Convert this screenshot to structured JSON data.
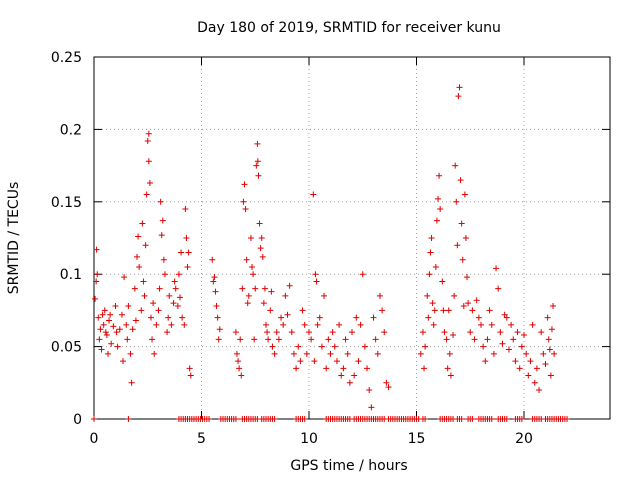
{
  "chart_data": {
    "type": "scatter",
    "title": "Day 180 of 2019, SRMTID for receiver kunu",
    "xlabel": "GPS time / hours",
    "ylabel": "SRMTID / TECUs",
    "xlim": [
      0,
      24
    ],
    "ylim": [
      0,
      0.25
    ],
    "x_ticks": [
      0,
      5,
      10,
      15,
      20
    ],
    "x_tick_labels": [
      "0",
      "5",
      "10",
      "15",
      "20"
    ],
    "y_ticks": [
      0,
      0.05,
      0.1,
      0.15,
      0.2,
      0.25
    ],
    "y_tick_labels": [
      "0",
      "0.05",
      "0.1",
      "0.15",
      "0.2",
      "0.25"
    ],
    "grid": true,
    "marker": "+",
    "series": [
      {
        "name": "SRMTID",
        "color": "#e00000",
        "points": [
          [
            0.05,
            0.083
          ],
          [
            0.1,
            0.095
          ],
          [
            0.12,
            0.117
          ],
          [
            0.15,
            0.1
          ],
          [
            0.2,
            0.07
          ],
          [
            0.25,
            0.055
          ],
          [
            0.3,
            0.062
          ],
          [
            0.35,
            0.048
          ],
          [
            0.4,
            0.072
          ],
          [
            0.45,
            0.065
          ],
          [
            0.5,
            0.075
          ],
          [
            0.55,
            0.06
          ],
          [
            0.6,
            0.058
          ],
          [
            0.65,
            0.045
          ],
          [
            0.7,
            0.068
          ],
          [
            0.75,
            0.072
          ],
          [
            0.8,
            0.052
          ],
          [
            0.9,
            0.064
          ],
          [
            1.0,
            0.078
          ],
          [
            1.05,
            0.06
          ],
          [
            1.1,
            0.05
          ],
          [
            1.2,
            0.062
          ],
          [
            1.3,
            0.072
          ],
          [
            1.35,
            0.04
          ],
          [
            1.4,
            0.098
          ],
          [
            1.5,
            0.065
          ],
          [
            1.55,
            0.055
          ],
          [
            1.6,
            0.078
          ],
          [
            1.7,
            0.045
          ],
          [
            1.75,
            0.025
          ],
          [
            1.8,
            0.062
          ],
          [
            1.9,
            0.09
          ],
          [
            1.95,
            0.068
          ],
          [
            2.0,
            0.112
          ],
          [
            2.05,
            0.126
          ],
          [
            2.1,
            0.105
          ],
          [
            2.2,
            0.075
          ],
          [
            2.25,
            0.135
          ],
          [
            2.3,
            0.095
          ],
          [
            2.35,
            0.085
          ],
          [
            2.4,
            0.12
          ],
          [
            2.45,
            0.155
          ],
          [
            2.5,
            0.192
          ],
          [
            2.55,
            0.197
          ],
          [
            2.55,
            0.178
          ],
          [
            2.6,
            0.163
          ],
          [
            2.65,
            0.07
          ],
          [
            2.7,
            0.055
          ],
          [
            2.75,
            0.08
          ],
          [
            2.8,
            0.045
          ],
          [
            2.9,
            0.065
          ],
          [
            3.0,
            0.075
          ],
          [
            3.05,
            0.09
          ],
          [
            3.1,
            0.15
          ],
          [
            3.15,
            0.127
          ],
          [
            3.2,
            0.137
          ],
          [
            3.25,
            0.11
          ],
          [
            3.3,
            0.1
          ],
          [
            3.4,
            0.06
          ],
          [
            3.45,
            0.07
          ],
          [
            3.5,
            0.085
          ],
          [
            3.6,
            0.065
          ],
          [
            3.7,
            0.08
          ],
          [
            3.75,
            0.095
          ],
          [
            3.8,
            0.09
          ],
          [
            3.9,
            0.078
          ],
          [
            3.95,
            0.1
          ],
          [
            4.0,
            0.084
          ],
          [
            4.05,
            0.115
          ],
          [
            4.1,
            0.07
          ],
          [
            4.2,
            0.065
          ],
          [
            4.25,
            0.145
          ],
          [
            4.3,
            0.125
          ],
          [
            4.35,
            0.105
          ],
          [
            4.4,
            0.115
          ],
          [
            4.45,
            0.035
          ],
          [
            4.5,
            0.03
          ],
          [
            5.5,
            0.11
          ],
          [
            5.55,
            0.095
          ],
          [
            5.6,
            0.098
          ],
          [
            5.65,
            0.088
          ],
          [
            5.7,
            0.078
          ],
          [
            5.75,
            0.07
          ],
          [
            5.8,
            0.055
          ],
          [
            5.85,
            0.062
          ],
          [
            6.6,
            0.06
          ],
          [
            6.65,
            0.045
          ],
          [
            6.7,
            0.04
          ],
          [
            6.75,
            0.035
          ],
          [
            6.8,
            0.055
          ],
          [
            6.85,
            0.03
          ],
          [
            6.9,
            0.09
          ],
          [
            6.95,
            0.15
          ],
          [
            7.0,
            0.162
          ],
          [
            7.05,
            0.145
          ],
          [
            7.1,
            0.11
          ],
          [
            7.15,
            0.08
          ],
          [
            7.2,
            0.085
          ],
          [
            7.3,
            0.125
          ],
          [
            7.35,
            0.105
          ],
          [
            7.4,
            0.1
          ],
          [
            7.45,
            0.055
          ],
          [
            7.5,
            0.09
          ],
          [
            7.55,
            0.175
          ],
          [
            7.6,
            0.19
          ],
          [
            7.62,
            0.178
          ],
          [
            7.65,
            0.168
          ],
          [
            7.7,
            0.135
          ],
          [
            7.75,
            0.118
          ],
          [
            7.8,
            0.125
          ],
          [
            7.85,
            0.112
          ],
          [
            7.9,
            0.08
          ],
          [
            7.95,
            0.09
          ],
          [
            8.0,
            0.065
          ],
          [
            8.05,
            0.06
          ],
          [
            8.1,
            0.055
          ],
          [
            8.2,
            0.075
          ],
          [
            8.25,
            0.088
          ],
          [
            8.3,
            0.05
          ],
          [
            8.4,
            0.045
          ],
          [
            8.5,
            0.06
          ],
          [
            8.6,
            0.055
          ],
          [
            8.7,
            0.07
          ],
          [
            8.8,
            0.065
          ],
          [
            8.9,
            0.085
          ],
          [
            9.0,
            0.072
          ],
          [
            9.1,
            0.092
          ],
          [
            9.2,
            0.06
          ],
          [
            9.3,
            0.045
          ],
          [
            9.4,
            0.035
          ],
          [
            9.5,
            0.05
          ],
          [
            9.6,
            0.04
          ],
          [
            9.7,
            0.075
          ],
          [
            9.8,
            0.065
          ],
          [
            9.9,
            0.045
          ],
          [
            10.0,
            0.06
          ],
          [
            10.1,
            0.055
          ],
          [
            10.2,
            0.155
          ],
          [
            10.25,
            0.04
          ],
          [
            10.3,
            0.1
          ],
          [
            10.35,
            0.095
          ],
          [
            10.4,
            0.065
          ],
          [
            10.5,
            0.07
          ],
          [
            10.6,
            0.05
          ],
          [
            10.7,
            0.085
          ],
          [
            10.8,
            0.035
          ],
          [
            10.9,
            0.055
          ],
          [
            11.0,
            0.045
          ],
          [
            11.1,
            0.06
          ],
          [
            11.2,
            0.05
          ],
          [
            11.3,
            0.04
          ],
          [
            11.4,
            0.065
          ],
          [
            11.5,
            0.03
          ],
          [
            11.6,
            0.035
          ],
          [
            11.7,
            0.055
          ],
          [
            11.8,
            0.045
          ],
          [
            11.9,
            0.025
          ],
          [
            12.0,
            0.06
          ],
          [
            12.1,
            0.03
          ],
          [
            12.2,
            0.07
          ],
          [
            12.3,
            0.04
          ],
          [
            12.4,
            0.065
          ],
          [
            12.5,
            0.1
          ],
          [
            12.6,
            0.05
          ],
          [
            12.7,
            0.035
          ],
          [
            12.8,
            0.02
          ],
          [
            12.9,
            0.008
          ],
          [
            13.0,
            0.07
          ],
          [
            13.1,
            0.055
          ],
          [
            13.2,
            0.045
          ],
          [
            13.3,
            0.085
          ],
          [
            13.4,
            0.075
          ],
          [
            13.5,
            0.06
          ],
          [
            13.6,
            0.025
          ],
          [
            13.7,
            0.022
          ],
          [
            15.2,
            0.045
          ],
          [
            15.3,
            0.06
          ],
          [
            15.35,
            0.035
          ],
          [
            15.4,
            0.05
          ],
          [
            15.5,
            0.085
          ],
          [
            15.55,
            0.07
          ],
          [
            15.6,
            0.1
          ],
          [
            15.65,
            0.115
          ],
          [
            15.7,
            0.125
          ],
          [
            15.75,
            0.08
          ],
          [
            15.8,
            0.065
          ],
          [
            15.85,
            0.075
          ],
          [
            15.9,
            0.105
          ],
          [
            15.95,
            0.137
          ],
          [
            16.0,
            0.152
          ],
          [
            16.05,
            0.168
          ],
          [
            16.1,
            0.145
          ],
          [
            16.2,
            0.095
          ],
          [
            16.25,
            0.075
          ],
          [
            16.3,
            0.06
          ],
          [
            16.4,
            0.055
          ],
          [
            16.45,
            0.035
          ],
          [
            16.5,
            0.075
          ],
          [
            16.55,
            0.045
          ],
          [
            16.6,
            0.03
          ],
          [
            16.7,
            0.058
          ],
          [
            16.75,
            0.085
          ],
          [
            16.8,
            0.175
          ],
          [
            16.85,
            0.15
          ],
          [
            16.9,
            0.12
          ],
          [
            16.95,
            0.223
          ],
          [
            17.0,
            0.229
          ],
          [
            17.05,
            0.165
          ],
          [
            17.1,
            0.135
          ],
          [
            17.15,
            0.11
          ],
          [
            17.2,
            0.078
          ],
          [
            17.25,
            0.155
          ],
          [
            17.3,
            0.125
          ],
          [
            17.35,
            0.098
          ],
          [
            17.4,
            0.08
          ],
          [
            17.5,
            0.06
          ],
          [
            17.6,
            0.075
          ],
          [
            17.7,
            0.055
          ],
          [
            17.8,
            0.082
          ],
          [
            17.9,
            0.07
          ],
          [
            18.0,
            0.065
          ],
          [
            18.1,
            0.05
          ],
          [
            18.2,
            0.04
          ],
          [
            18.3,
            0.055
          ],
          [
            18.4,
            0.075
          ],
          [
            18.5,
            0.065
          ],
          [
            18.6,
            0.045
          ],
          [
            18.7,
            0.104
          ],
          [
            18.8,
            0.09
          ],
          [
            18.9,
            0.06
          ],
          [
            19.0,
            0.052
          ],
          [
            19.1,
            0.072
          ],
          [
            19.2,
            0.07
          ],
          [
            19.3,
            0.048
          ],
          [
            19.4,
            0.065
          ],
          [
            19.5,
            0.055
          ],
          [
            19.6,
            0.04
          ],
          [
            19.7,
            0.06
          ],
          [
            19.8,
            0.035
          ],
          [
            19.9,
            0.05
          ],
          [
            20.0,
            0.058
          ],
          [
            20.1,
            0.045
          ],
          [
            20.2,
            0.03
          ],
          [
            20.3,
            0.04
          ],
          [
            20.4,
            0.065
          ],
          [
            20.5,
            0.025
          ],
          [
            20.6,
            0.035
          ],
          [
            20.7,
            0.02
          ],
          [
            20.8,
            0.06
          ],
          [
            20.9,
            0.045
          ],
          [
            21.0,
            0.038
          ],
          [
            21.1,
            0.07
          ],
          [
            21.15,
            0.055
          ],
          [
            21.2,
            0.048
          ],
          [
            21.25,
            0.03
          ],
          [
            21.3,
            0.062
          ],
          [
            21.35,
            0.078
          ],
          [
            21.4,
            0.045
          ]
        ]
      }
    ],
    "zero_value_x_ranges": [
      [
        0.0,
        0.0
      ],
      [
        1.6,
        1.6
      ],
      [
        3.95,
        5.35
      ],
      [
        5.9,
        6.6
      ],
      [
        6.9,
        7.6
      ],
      [
        7.8,
        8.4
      ],
      [
        9.4,
        9.8
      ],
      [
        10.8,
        11.9
      ],
      [
        12.1,
        12.9
      ],
      [
        13.0,
        13.5
      ],
      [
        13.7,
        13.8
      ],
      [
        13.9,
        15.1
      ],
      [
        15.3,
        15.4
      ],
      [
        16.1,
        16.7
      ],
      [
        16.9,
        17.1
      ],
      [
        17.4,
        17.6
      ],
      [
        17.9,
        18.5
      ],
      [
        18.8,
        19.2
      ],
      [
        19.6,
        19.9
      ],
      [
        20.4,
        20.8
      ],
      [
        21.0,
        21.3
      ],
      [
        21.4,
        22.0
      ]
    ]
  }
}
